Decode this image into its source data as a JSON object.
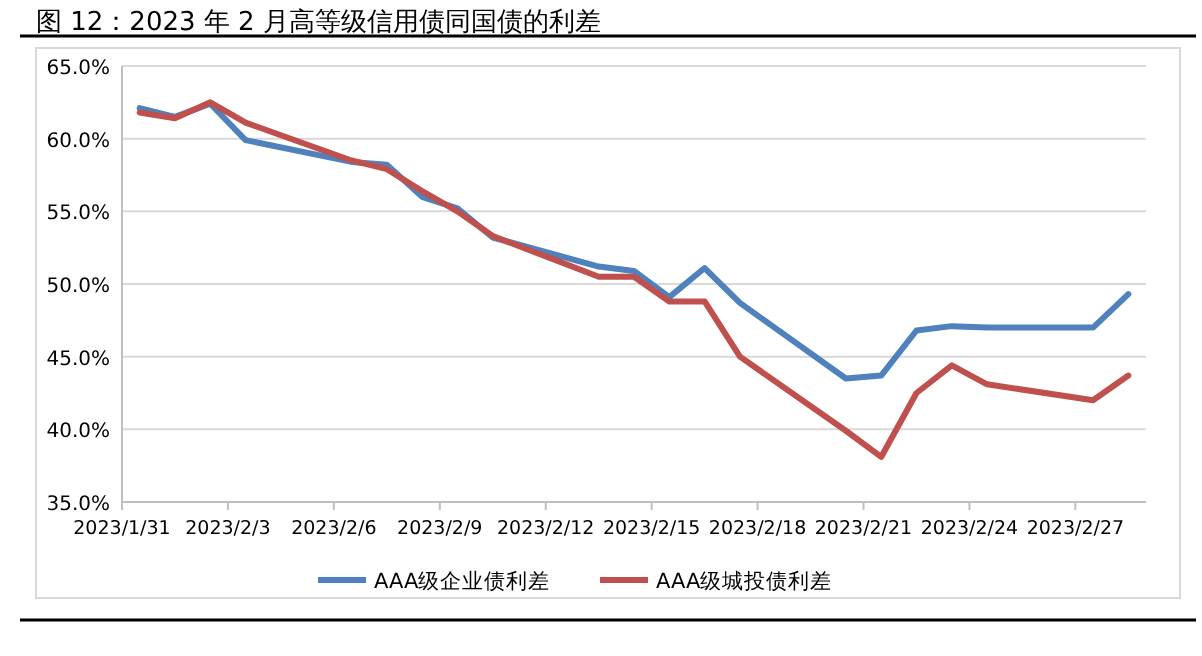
{
  "chart_data": {
    "type": "line",
    "title": "图 12：2023 年 2 月高等级信用债同国债的利差",
    "x": [
      "2023-01-31T12:00",
      "2023-02-01T12:00",
      "2023-02-02T12:00",
      "2023-02-03T12:00",
      "2023-02-06T12:00",
      "2023-02-07T12:00",
      "2023-02-08T12:00",
      "2023-02-09T12:00",
      "2023-02-10T12:00",
      "2023-02-13T12:00",
      "2023-02-14T12:00",
      "2023-02-15T12:00",
      "2023-02-16T12:00",
      "2023-02-17T12:00",
      "2023-02-20T12:00",
      "2023-02-21T12:00",
      "2023-02-22T12:00",
      "2023-02-23T12:00",
      "2023-02-24T12:00",
      "2023-02-27T12:00",
      "2023-02-28T12:00"
    ],
    "series": [
      {
        "name": "AAA级企业债利差",
        "color": "#4f81bd",
        "values": [
          62.1,
          61.5,
          62.4,
          59.9,
          58.4,
          58.2,
          56.0,
          55.2,
          53.2,
          51.2,
          50.9,
          49.1,
          51.1,
          48.7,
          43.5,
          43.7,
          46.8,
          47.1,
          47.0,
          47.0,
          49.3
        ]
      },
      {
        "name": "AAA级城投债利差",
        "color": "#c0504d",
        "values": [
          61.8,
          61.4,
          62.5,
          61.1,
          58.5,
          57.9,
          56.4,
          55.0,
          53.3,
          50.5,
          50.5,
          48.8,
          48.8,
          45.0,
          39.9,
          38.1,
          42.5,
          44.4,
          43.1,
          42.0,
          43.7
        ]
      }
    ],
    "xlim": [
      "2023-01-31",
      "2023-03-01"
    ],
    "xticks": [
      {
        "value": "2023-01-31",
        "label": "2023/1/31"
      },
      {
        "value": "2023-02-03",
        "label": "2023/2/3"
      },
      {
        "value": "2023-02-06",
        "label": "2023/2/6"
      },
      {
        "value": "2023-02-09",
        "label": "2023/2/9"
      },
      {
        "value": "2023-02-12",
        "label": "2023/2/12"
      },
      {
        "value": "2023-02-15",
        "label": "2023/2/15"
      },
      {
        "value": "2023-02-18",
        "label": "2023/2/18"
      },
      {
        "value": "2023-02-21",
        "label": "2023/2/21"
      },
      {
        "value": "2023-02-24",
        "label": "2023/2/24"
      },
      {
        "value": "2023-02-27",
        "label": "2023/2/27"
      }
    ],
    "ylim": [
      35,
      65
    ],
    "yticks": [
      {
        "value": 35,
        "label": "35.0%"
      },
      {
        "value": 40,
        "label": "40.0%"
      },
      {
        "value": 45,
        "label": "45.0%"
      },
      {
        "value": 50,
        "label": "50.0%"
      },
      {
        "value": 55,
        "label": "55.0%"
      },
      {
        "value": 60,
        "label": "60.0%"
      },
      {
        "value": 65,
        "label": "65.0%"
      }
    ],
    "grid": "y",
    "legend": "bottom",
    "marker": "none",
    "line_style": "solid"
  }
}
